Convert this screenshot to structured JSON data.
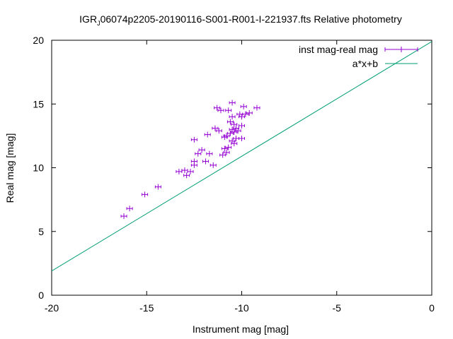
{
  "chart_data": {
    "type": "scatter",
    "title_main": "IGR",
    "title_sub": "J",
    "title_rest": "06074p2205-20190116-S001-R001-I-221937.fts Relative photometry",
    "xlabel": "Instrument mag [mag]",
    "ylabel": "Real mag [mag]",
    "xlim": [
      -20,
      0
    ],
    "ylim": [
      0,
      20
    ],
    "xticks": [
      "-20",
      "-15",
      "-10",
      "-5",
      "0"
    ],
    "yticks": [
      "0",
      "5",
      "10",
      "15",
      "20"
    ],
    "grid": false,
    "legend_position": "top-right",
    "colors": {
      "points": "#9400d3",
      "fit": "#009e73",
      "axis": "#000000"
    },
    "fit": {
      "name": "a*x+b",
      "slope": 0.9,
      "intercept": 19.9
    },
    "series": [
      {
        "name": "inst mag-real mag",
        "points": [
          [
            -16.2,
            6.2
          ],
          [
            -15.9,
            6.8
          ],
          [
            -15.1,
            7.9
          ],
          [
            -14.4,
            8.5
          ],
          [
            -13.3,
            9.7
          ],
          [
            -13.0,
            9.8
          ],
          [
            -12.9,
            9.4
          ],
          [
            -12.7,
            9.7
          ],
          [
            -12.5,
            10.2
          ],
          [
            -12.5,
            10.5
          ],
          [
            -12.3,
            11.1
          ],
          [
            -12.5,
            12.2
          ],
          [
            -12.1,
            11.4
          ],
          [
            -11.9,
            10.5
          ],
          [
            -11.8,
            12.6
          ],
          [
            -11.7,
            11.1
          ],
          [
            -11.5,
            10.2
          ],
          [
            -11.4,
            13.1
          ],
          [
            -11.3,
            14.7
          ],
          [
            -11.2,
            12.9
          ],
          [
            -11.1,
            14.5
          ],
          [
            -11.0,
            11.0
          ],
          [
            -10.9,
            11.5
          ],
          [
            -10.9,
            12.4
          ],
          [
            -10.8,
            12.5
          ],
          [
            -10.8,
            11.2
          ],
          [
            -10.7,
            11.6
          ],
          [
            -10.7,
            14.5
          ],
          [
            -10.6,
            12.7
          ],
          [
            -10.6,
            13.6
          ],
          [
            -10.5,
            12.1
          ],
          [
            -10.5,
            13.0
          ],
          [
            -10.5,
            14.0
          ],
          [
            -10.5,
            15.1
          ],
          [
            -10.4,
            11.9
          ],
          [
            -10.4,
            12.8
          ],
          [
            -10.4,
            13.4
          ],
          [
            -10.3,
            13.1
          ],
          [
            -10.3,
            12.3
          ],
          [
            -10.2,
            12.9
          ],
          [
            -10.1,
            14.2
          ],
          [
            -10.0,
            14.0
          ],
          [
            -10.0,
            13.3
          ],
          [
            -10.0,
            12.3
          ],
          [
            -9.9,
            14.8
          ],
          [
            -9.8,
            14.2
          ],
          [
            -9.6,
            14.3
          ],
          [
            -9.2,
            14.7
          ]
        ]
      }
    ]
  }
}
